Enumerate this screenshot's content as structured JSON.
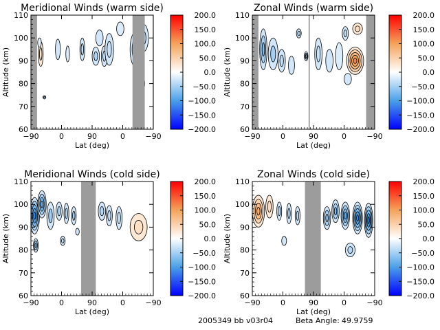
{
  "footer": {
    "run_id": "2005349 bb v03r04",
    "beta_label": "Beta Angle:",
    "beta_value": "49.9759"
  },
  "colorscale": {
    "min": -200,
    "max": 200,
    "ticks": [
      "200.0",
      "150.0",
      "100.0",
      "50.0",
      "0.0",
      "−50.0",
      "−100.0",
      "−150.0",
      "−200.0"
    ],
    "colors": {
      "neg_max": "#0000ff",
      "neg_mid": "#4aa0e8",
      "zero": "#ffffff",
      "pos_mid": "#f5a35a",
      "pos_max": "#ff0000"
    }
  },
  "chart_data": [
    {
      "type": "heatmap",
      "title": "Meridional Winds (warm side)",
      "xlabel": "Lat (deg)",
      "ylabel": "Altitude (km)",
      "xticks": [
        "−90",
        "0",
        "90",
        "0",
        "−90"
      ],
      "yticks": [
        "60",
        "70",
        "80",
        "90",
        "100",
        "110"
      ],
      "ylim": [
        60,
        110
      ],
      "no_data_bands": [
        [
          0.0,
          0.05
        ],
        [
          0.83,
          0.93
        ],
        [
          0.995,
          1.0
        ]
      ],
      "blobs": [
        {
          "x": 0.08,
          "y": 93,
          "w": 0.02,
          "h": 11,
          "v": 30
        },
        {
          "x": 0.07,
          "y": 98,
          "w": 0.015,
          "h": 4,
          "v": -15
        },
        {
          "x": 0.11,
          "y": 74,
          "w": 0.012,
          "h": 1.5,
          "v": -40
        },
        {
          "x": 0.22,
          "y": 95,
          "w": 0.02,
          "h": 9,
          "v": -25
        },
        {
          "x": 0.3,
          "y": 93,
          "w": 0.015,
          "h": 7,
          "v": -20
        },
        {
          "x": 0.42,
          "y": 95,
          "w": 0.02,
          "h": 10,
          "v": -30
        },
        {
          "x": 0.53,
          "y": 92,
          "w": 0.03,
          "h": 8,
          "v": -45
        },
        {
          "x": 0.56,
          "y": 100,
          "w": 0.03,
          "h": 7,
          "v": -25
        },
        {
          "x": 0.6,
          "y": 92,
          "w": 0.025,
          "h": 9,
          "v": -35
        },
        {
          "x": 0.64,
          "y": 95,
          "w": 0.035,
          "h": 14,
          "v": -30
        },
        {
          "x": 0.73,
          "y": 104,
          "w": 0.03,
          "h": 6,
          "v": -20
        },
        {
          "x": 0.86,
          "y": 95,
          "w": 0.05,
          "h": 16,
          "v": -60
        },
        {
          "x": 0.92,
          "y": 100,
          "w": 0.04,
          "h": 12,
          "v": -45
        },
        {
          "x": 0.89,
          "y": 80,
          "w": 0.04,
          "h": 8,
          "v": -30
        }
      ]
    },
    {
      "type": "heatmap",
      "title": "Zonal Winds (warm side)",
      "xlabel": "Lat (deg)",
      "ylabel": "Altitude (km)",
      "xticks": [
        "−90",
        "0",
        "90",
        "0",
        "−90"
      ],
      "yticks": [
        "60",
        "70",
        "80",
        "90",
        "100",
        "110"
      ],
      "ylim": [
        60,
        110
      ],
      "no_data_bands": [
        [
          0.0,
          0.05
        ],
        [
          0.46,
          0.47
        ],
        [
          0.93,
          1.0
        ]
      ],
      "blobs": [
        {
          "x": 0.09,
          "y": 95,
          "w": 0.03,
          "h": 18,
          "v": -70
        },
        {
          "x": 0.17,
          "y": 93,
          "w": 0.04,
          "h": 14,
          "v": -50
        },
        {
          "x": 0.24,
          "y": 90,
          "w": 0.03,
          "h": 10,
          "v": -35
        },
        {
          "x": 0.32,
          "y": 88,
          "w": 0.025,
          "h": 8,
          "v": -25
        },
        {
          "x": 0.38,
          "y": 102,
          "w": 0.02,
          "h": 4,
          "v": -40
        },
        {
          "x": 0.44,
          "y": 92,
          "w": 0.015,
          "h": 4,
          "v": -60
        },
        {
          "x": 0.54,
          "y": 93,
          "w": 0.03,
          "h": 14,
          "v": -30
        },
        {
          "x": 0.63,
          "y": 90,
          "w": 0.03,
          "h": 10,
          "v": -25
        },
        {
          "x": 0.71,
          "y": 92,
          "w": 0.03,
          "h": 12,
          "v": -20
        },
        {
          "x": 0.84,
          "y": 90,
          "w": 0.07,
          "h": 12,
          "v": 120
        },
        {
          "x": 0.86,
          "y": 104,
          "w": 0.04,
          "h": 5,
          "v": 40
        },
        {
          "x": 0.76,
          "y": 102,
          "w": 0.025,
          "h": 6,
          "v": -35
        },
        {
          "x": 0.78,
          "y": 82,
          "w": 0.03,
          "h": 5,
          "v": -25
        }
      ]
    },
    {
      "type": "heatmap",
      "title": "Meridional Winds (cold side)",
      "xlabel": "Lat (deg)",
      "ylabel": "Altitude (km)",
      "xticks": [
        "−90",
        "0",
        "90",
        "0",
        "−90"
      ],
      "yticks": [
        "60",
        "70",
        "80",
        "90",
        "100",
        "110"
      ],
      "ylim": [
        60,
        110
      ],
      "no_data_bands": [
        [
          0.41,
          0.53
        ]
      ],
      "blobs": [
        {
          "x": 0.03,
          "y": 95,
          "w": 0.04,
          "h": 16,
          "v": -110
        },
        {
          "x": 0.09,
          "y": 100,
          "w": 0.035,
          "h": 12,
          "v": -80
        },
        {
          "x": 0.04,
          "y": 82,
          "w": 0.02,
          "h": 6,
          "v": -60
        },
        {
          "x": 0.16,
          "y": 95,
          "w": 0.03,
          "h": 12,
          "v": -50
        },
        {
          "x": 0.23,
          "y": 97,
          "w": 0.025,
          "h": 8,
          "v": -45
        },
        {
          "x": 0.29,
          "y": 96,
          "w": 0.02,
          "h": 9,
          "v": -40
        },
        {
          "x": 0.35,
          "y": 95,
          "w": 0.02,
          "h": 8,
          "v": -50
        },
        {
          "x": 0.26,
          "y": 84,
          "w": 0.02,
          "h": 4,
          "v": -30
        },
        {
          "x": 0.38,
          "y": 88,
          "w": 0.015,
          "h": 3,
          "v": -25
        },
        {
          "x": 0.58,
          "y": 97,
          "w": 0.03,
          "h": 8,
          "v": -40
        },
        {
          "x": 0.64,
          "y": 95,
          "w": 0.025,
          "h": 9,
          "v": -35
        },
        {
          "x": 0.72,
          "y": 94,
          "w": 0.025,
          "h": 10,
          "v": -30
        },
        {
          "x": 0.88,
          "y": 90,
          "w": 0.07,
          "h": 12,
          "v": 35
        }
      ]
    },
    {
      "type": "heatmap",
      "title": "Zonal Winds (cold side)",
      "xlabel": "Lat (deg)",
      "ylabel": "Altitude (km)",
      "xticks": [
        "−90",
        "0",
        "90",
        "0",
        "−90"
      ],
      "yticks": [
        "60",
        "70",
        "80",
        "90",
        "100",
        "110"
      ],
      "ylim": [
        60,
        110
      ],
      "no_data_bands": [
        [
          0.43,
          0.56
        ]
      ],
      "blobs": [
        {
          "x": 0.05,
          "y": 97,
          "w": 0.05,
          "h": 14,
          "v": 90
        },
        {
          "x": 0.14,
          "y": 99,
          "w": 0.03,
          "h": 10,
          "v": 40
        },
        {
          "x": 0.22,
          "y": 97,
          "w": 0.02,
          "h": 8,
          "v": -40
        },
        {
          "x": 0.3,
          "y": 96,
          "w": 0.02,
          "h": 9,
          "v": -45
        },
        {
          "x": 0.37,
          "y": 95,
          "w": 0.02,
          "h": 8,
          "v": -35
        },
        {
          "x": 0.26,
          "y": 84,
          "w": 0.02,
          "h": 4,
          "v": -25
        },
        {
          "x": 0.61,
          "y": 94,
          "w": 0.03,
          "h": 10,
          "v": -60
        },
        {
          "x": 0.68,
          "y": 97,
          "w": 0.03,
          "h": 10,
          "v": -70
        },
        {
          "x": 0.76,
          "y": 95,
          "w": 0.035,
          "h": 12,
          "v": -90
        },
        {
          "x": 0.86,
          "y": 94,
          "w": 0.04,
          "h": 14,
          "v": -110
        },
        {
          "x": 0.95,
          "y": 93,
          "w": 0.035,
          "h": 15,
          "v": -120
        },
        {
          "x": 0.8,
          "y": 80,
          "w": 0.04,
          "h": 6,
          "v": -40
        }
      ]
    }
  ]
}
